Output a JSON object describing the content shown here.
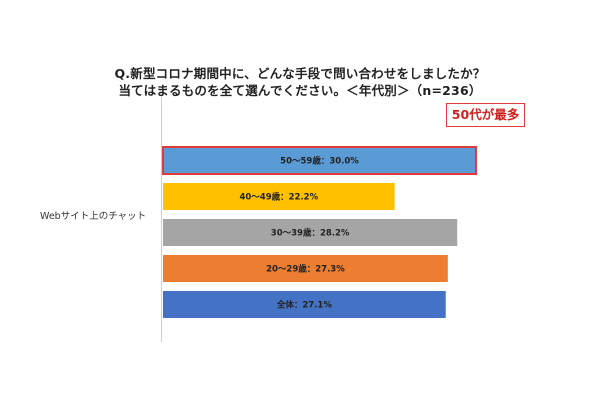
{
  "title": {
    "line1": "Q.新型コロナ期間中に、どんな手段で問い合わせをしましたか？",
    "line2": "当てはまるものを全て選んでください。＜年代別＞（n=236）"
  },
  "callout": {
    "text": "50代が最多",
    "color": "#e03a3a"
  },
  "chart_data": {
    "type": "bar",
    "orientation": "horizontal",
    "categories": [
      "Webサイト上のチャット"
    ],
    "xlim": [
      0,
      30
    ],
    "grid": false,
    "series": [
      {
        "name": "50〜59歳",
        "values": [
          30.0
        ],
        "label": "50〜59歳：30.0%",
        "color": "#5b9bd5",
        "highlight": true,
        "highlight_color": "#e03a3a"
      },
      {
        "name": "40〜49歳",
        "values": [
          22.2
        ],
        "label": "40〜49歳：22.2%",
        "color": "#ffc000"
      },
      {
        "name": "30〜39歳",
        "values": [
          28.2
        ],
        "label": "30〜39歳：28.2%",
        "color": "#a5a5a5"
      },
      {
        "name": "20〜29歳",
        "values": [
          27.3
        ],
        "label": "20〜29歳：27.3%",
        "color": "#ed7d31"
      },
      {
        "name": "全体",
        "values": [
          27.1
        ],
        "label": "全体：27.1%",
        "color": "#4472c4"
      }
    ]
  }
}
